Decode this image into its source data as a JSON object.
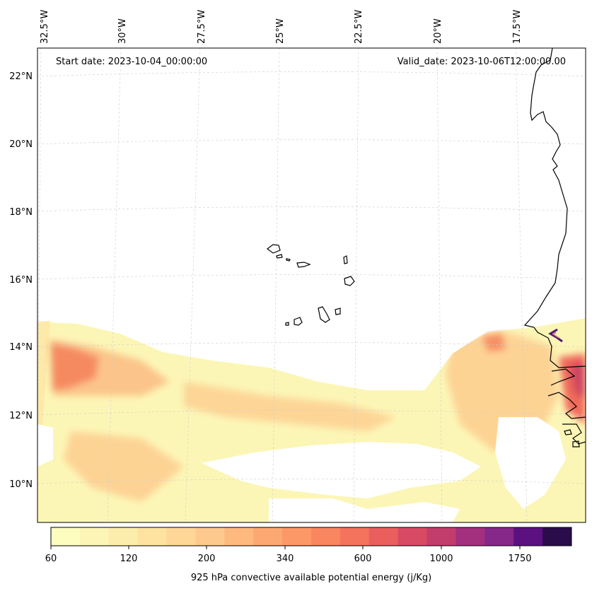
{
  "map": {
    "start_date_text": "Start date: 2023-10-04_00:00:00",
    "valid_date_text": "Valid_date: 2023-10-06T12:00:00.00",
    "lon_labels": [
      "32.5°W",
      "30°W",
      "27.5°W",
      "25°W",
      "22.5°W",
      "20°W",
      "17.5°W"
    ],
    "lat_labels": [
      "22°N",
      "20°N",
      "18°N",
      "16°N",
      "14°N",
      "12°N",
      "10°N"
    ],
    "gridlines": true
  },
  "colorbar": {
    "label": "925 hPa convective available potential energy (j/Kg)",
    "tick_labels": [
      "60",
      "120",
      "200",
      "340",
      "600",
      "1000",
      "1750"
    ],
    "colors": [
      "#fcfdbf",
      "#fcf5b5",
      "#fdedac",
      "#fee2a0",
      "#fed796",
      "#fec98d",
      "#feb97f",
      "#fda873",
      "#fc9867",
      "#f9865f",
      "#f4735c",
      "#ea5e5e",
      "#d84964",
      "#c23c6c",
      "#a3307e",
      "#86288a",
      "#5c1180",
      "#2a0c4a"
    ]
  }
}
